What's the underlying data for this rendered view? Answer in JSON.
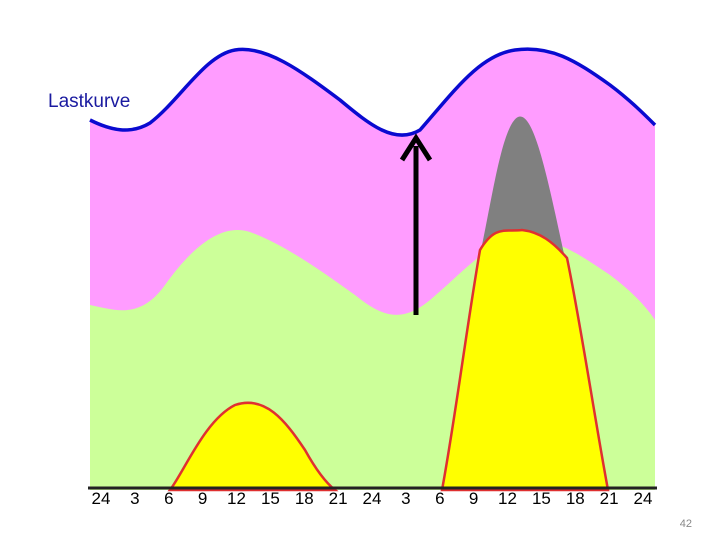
{
  "chart_data": {
    "type": "area",
    "title": "",
    "xlabel": "",
    "ylabel": "",
    "annotation_label": "Lastkurve",
    "x_tick_labels": [
      "24",
      "3",
      "6",
      "9",
      "12",
      "15",
      "18",
      "21",
      "24",
      "3",
      "6",
      "9",
      "12",
      "15",
      "18",
      "21",
      "24"
    ],
    "colors": {
      "load_band": "#ff9cff",
      "load_curve": "#0a0ad0",
      "mid_band": "#ccff99",
      "peak_gray": "#808080",
      "peak_yellow": "#ffff00",
      "peak_outline": "#e03030",
      "arrow": "#000000"
    }
  },
  "page_number": "42"
}
